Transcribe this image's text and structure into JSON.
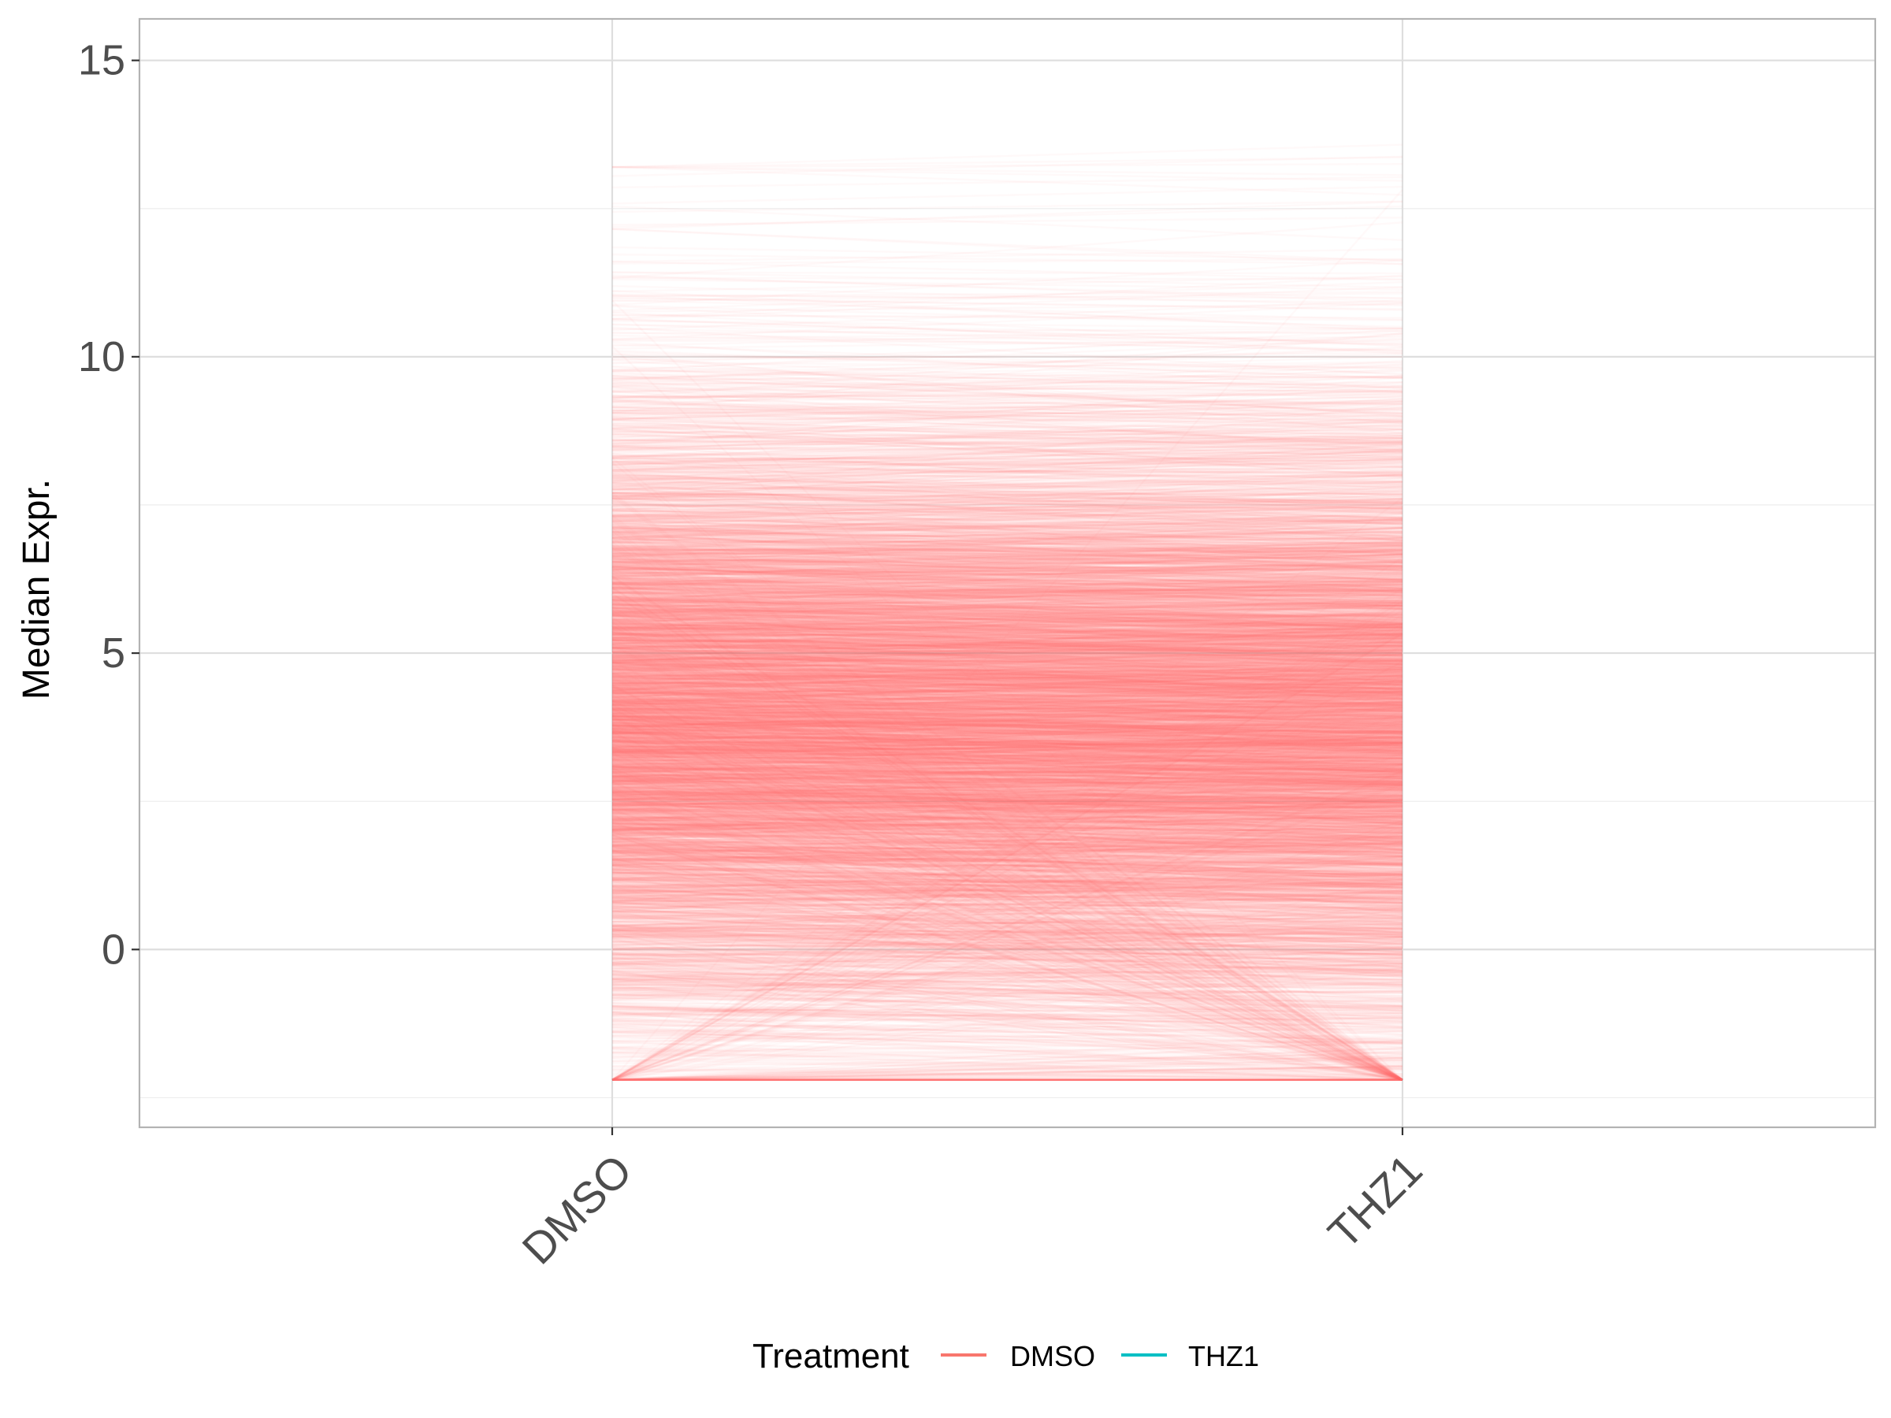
{
  "chart_data": {
    "type": "line",
    "title": "",
    "xlabel": "",
    "ylabel": "Median Expr.",
    "categories": [
      "DMSO",
      "THZ1"
    ],
    "ylim": [
      -3,
      15.7
    ],
    "yticks": [
      0,
      5,
      10,
      15
    ],
    "grid": true,
    "legend": {
      "title": "Treatment",
      "position": "bottom",
      "entries": [
        {
          "label": "DMSO",
          "color": "#F8766D"
        },
        {
          "label": "THZ1",
          "color": "#00BFC4"
        }
      ]
    },
    "series": [
      {
        "group": "DMSO",
        "color": "#F8766D",
        "n_lines": 6000,
        "dmso_distribution": {
          "median": 3.9,
          "spread": 2.3,
          "min": -2.2,
          "max": 13.2
        },
        "thz1_vs_dmso": {
          "mean_shift": -0.1,
          "sd": 0.45,
          "floor": -2.2,
          "floor_share": 0.03
        }
      }
    ]
  }
}
